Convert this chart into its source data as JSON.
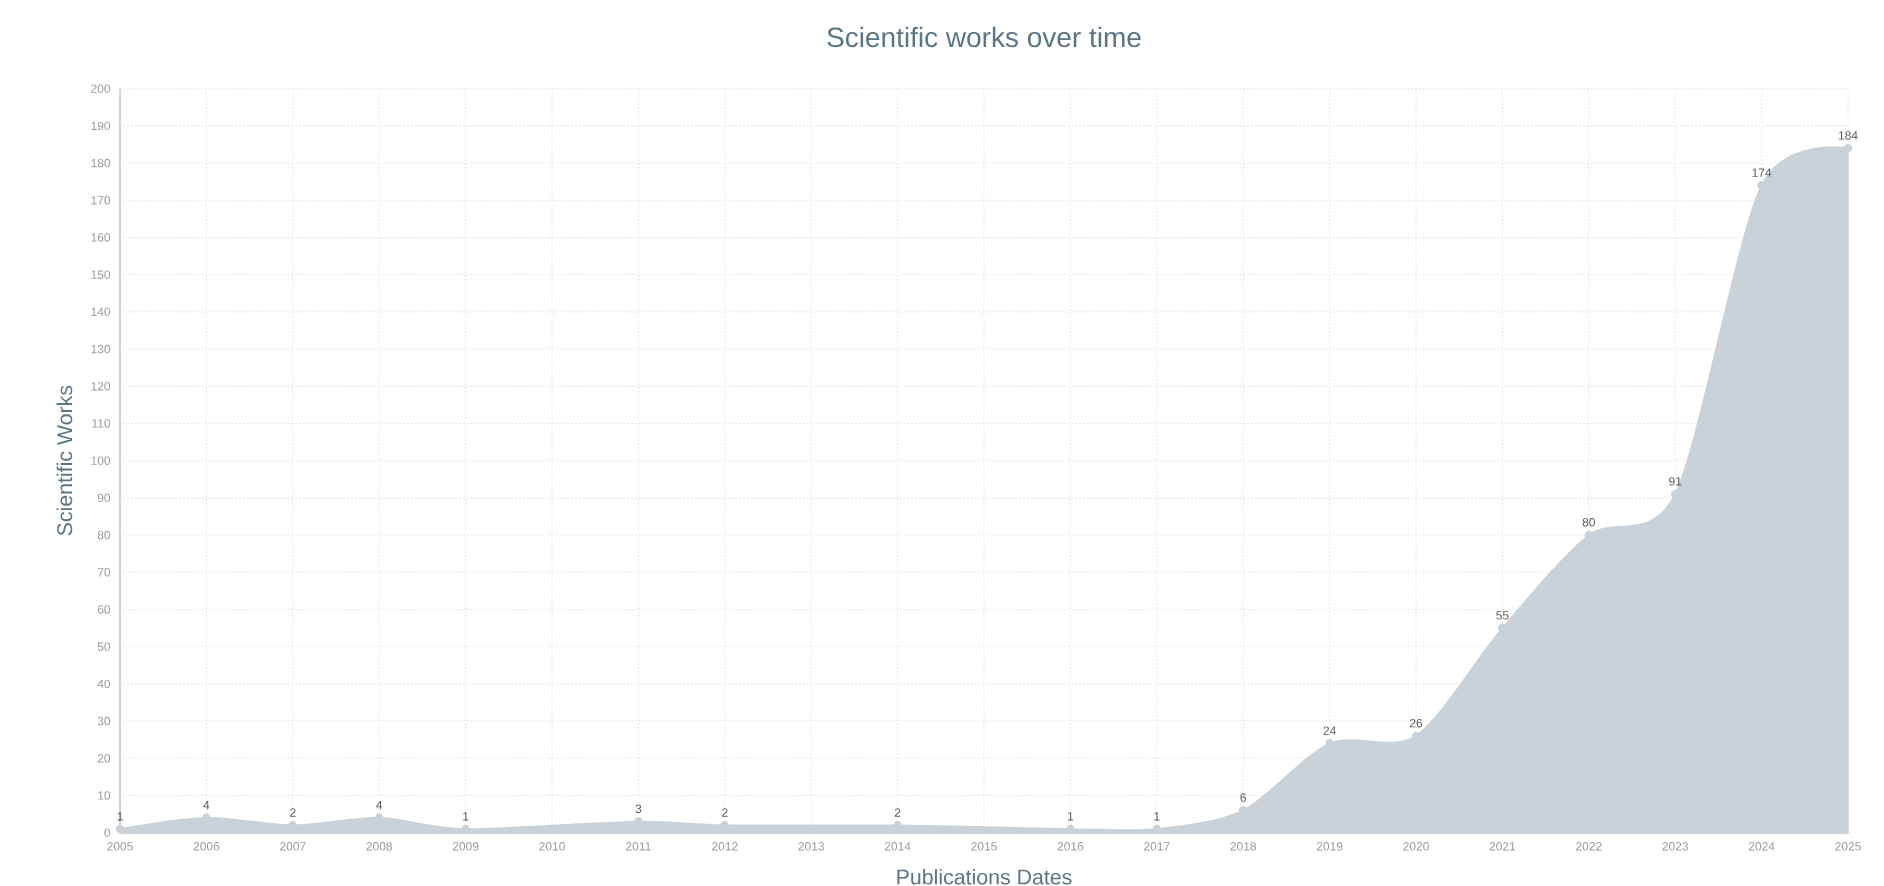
{
  "chart_data": {
    "type": "area",
    "title": "Scientific works over time",
    "xlabel": "Publications Dates",
    "ylabel": "Scientific Works",
    "x": [
      2005,
      2006,
      2007,
      2008,
      2009,
      2011,
      2012,
      2014,
      2016,
      2017,
      2018,
      2019,
      2020,
      2021,
      2022,
      2023,
      2024,
      2025
    ],
    "values": [
      1,
      4,
      2,
      4,
      1,
      3,
      2,
      2,
      1,
      1,
      6,
      24,
      26,
      55,
      80,
      91,
      174,
      184
    ],
    "color": "#c9d2d9",
    "xlim": [
      2005,
      2025
    ],
    "xticks": [
      2005,
      2006,
      2007,
      2008,
      2009,
      2010,
      2011,
      2012,
      2013,
      2014,
      2015,
      2016,
      2017,
      2018,
      2019,
      2020,
      2021,
      2022,
      2023,
      2024,
      2025
    ],
    "ylim": [
      0,
      200
    ],
    "yticks": [
      0,
      10,
      20,
      30,
      40,
      50,
      60,
      70,
      80,
      90,
      100,
      110,
      120,
      130,
      140,
      150,
      160,
      170,
      180,
      190,
      200
    ],
    "grid": true,
    "marker": "circle",
    "data_labels": true
  }
}
